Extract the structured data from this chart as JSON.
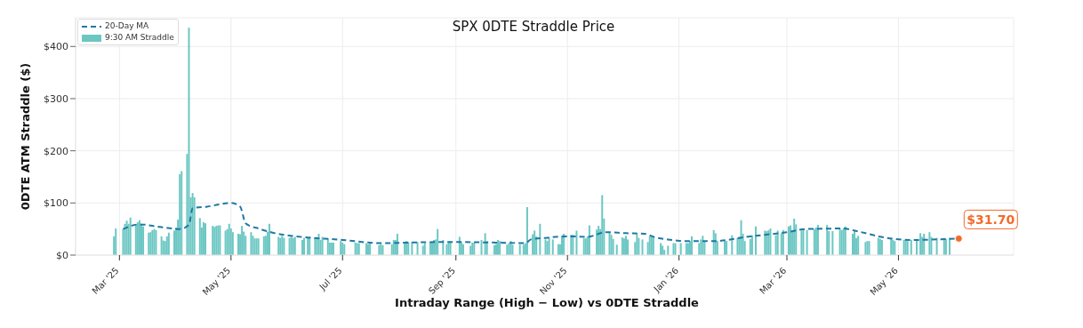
{
  "chart_data": {
    "type": "bar",
    "title": "SPX 0DTE Straddle Price",
    "ylabel": "0DTE ATM Straddle ($)",
    "annotations": [
      {
        "text": "$31.70",
        "x": "2026-06-03",
        "y": 31.7
      },
      "Intraday Range (High − Low) vs 0DTE Straddle"
    ],
    "series": [
      {
        "name": "20-Day MA",
        "type": "line",
        "color": "#1f78a4",
        "line_style": "dashed",
        "x": [
          "2025-03-03",
          "2025-03-12",
          "2025-03-23",
          "2025-04-03",
          "2025-04-08",
          "2025-04-10",
          "2025-04-18",
          "2025-05-01",
          "2025-05-06",
          "2025-05-09",
          "2025-05-17",
          "2025-05-25",
          "2025-06-01",
          "2025-07-01",
          "2025-07-22",
          "2025-08-22",
          "2025-09-02",
          "2025-09-23",
          "2025-10-09",
          "2025-10-12",
          "2025-10-20",
          "2025-11-01",
          "2025-11-12",
          "2025-11-22",
          "2025-12-03",
          "2025-12-13",
          "2025-12-19",
          "2025-12-26",
          "2026-01-05",
          "2026-01-21",
          "2026-02-07",
          "2026-03-01",
          "2026-03-12",
          "2026-04-01",
          "2026-04-07",
          "2026-04-23",
          "2026-05-07",
          "2026-06-03"
        ],
        "values": [
          50,
          59,
          54,
          50,
          58,
          90,
          93,
          100,
          93,
          61,
          50,
          42,
          38,
          29,
          23,
          25,
          25,
          24,
          23,
          30,
          33,
          36,
          35,
          44,
          42,
          41,
          34,
          30,
          27,
          27,
          35,
          44,
          50,
          51,
          47,
          34,
          29,
          32
        ]
      },
      {
        "name": "9:30 AM Straddle",
        "color": "#6cc7c3",
        "x": [
          "2025-02-26",
          "2025-02-27",
          "2025-03-03",
          "2025-03-04",
          "2025-03-05",
          "2025-03-06",
          "2025-03-07",
          "2025-03-10",
          "2025-03-11",
          "2025-03-12",
          "2025-03-13",
          "2025-03-14",
          "2025-03-17",
          "2025-03-18",
          "2025-03-19",
          "2025-03-20",
          "2025-03-21",
          "2025-03-24",
          "2025-03-25",
          "2025-03-26",
          "2025-03-27",
          "2025-03-28",
          "2025-03-31",
          "2025-04-01",
          "2025-04-02",
          "2025-04-03",
          "2025-04-04",
          "2025-04-07",
          "2025-04-08",
          "2025-04-09",
          "2025-04-10",
          "2025-04-11",
          "2025-04-14",
          "2025-04-15",
          "2025-04-16",
          "2025-04-17",
          "2025-04-21",
          "2025-04-22",
          "2025-04-23",
          "2025-04-24",
          "2025-04-25",
          "2025-04-28",
          "2025-04-29",
          "2025-04-30",
          "2025-05-01",
          "2025-05-02",
          "2025-05-05",
          "2025-05-06",
          "2025-05-07",
          "2025-05-08",
          "2025-05-09",
          "2025-05-12",
          "2025-05-13",
          "2025-05-14",
          "2025-05-15",
          "2025-05-16",
          "2025-05-19",
          "2025-05-20",
          "2025-05-21",
          "2025-05-22",
          "2025-05-27",
          "2025-05-28",
          "2025-05-29",
          "2025-05-30",
          "2025-06-02",
          "2025-06-03",
          "2025-06-04",
          "2025-06-05",
          "2025-06-09",
          "2025-06-10",
          "2025-06-12",
          "2025-06-13",
          "2025-06-16",
          "2025-06-17",
          "2025-06-18",
          "2025-06-19",
          "2025-06-20",
          "2025-06-23",
          "2025-06-24",
          "2025-06-25",
          "2025-06-26",
          "2025-06-30",
          "2025-07-01",
          "2025-07-02",
          "2025-07-08",
          "2025-07-09",
          "2025-07-10",
          "2025-07-14",
          "2025-07-15",
          "2025-07-16",
          "2025-07-21",
          "2025-07-22",
          "2025-07-23",
          "2025-07-28",
          "2025-07-29",
          "2025-07-30",
          "2025-07-31",
          "2025-08-04",
          "2025-08-05",
          "2025-08-06",
          "2025-08-08",
          "2025-08-11",
          "2025-08-14",
          "2025-08-15",
          "2025-08-18",
          "2025-08-19",
          "2025-08-20",
          "2025-08-21",
          "2025-08-22",
          "2025-08-25",
          "2025-08-27",
          "2025-08-28",
          "2025-08-29",
          "2025-09-03",
          "2025-09-04",
          "2025-09-05",
          "2025-09-09",
          "2025-09-10",
          "2025-09-11",
          "2025-09-15",
          "2025-09-17",
          "2025-09-18",
          "2025-09-22",
          "2025-09-23",
          "2025-09-24",
          "2025-09-25",
          "2025-09-29",
          "2025-09-30",
          "2025-10-01",
          "2025-10-02",
          "2025-10-06",
          "2025-10-08",
          "2025-10-09",
          "2025-10-10",
          "2025-10-13",
          "2025-10-14",
          "2025-10-15",
          "2025-10-17",
          "2025-10-20",
          "2025-10-21",
          "2025-10-22",
          "2025-10-24",
          "2025-10-27",
          "2025-10-28",
          "2025-10-29",
          "2025-10-30",
          "2025-11-03",
          "2025-11-04",
          "2025-11-06",
          "2025-11-10",
          "2025-11-11",
          "2025-11-12",
          "2025-11-13",
          "2025-11-17",
          "2025-11-18",
          "2025-11-19",
          "2025-11-20",
          "2025-11-21",
          "2025-11-24",
          "2025-11-25",
          "2025-11-26",
          "2025-11-28",
          "2025-12-01",
          "2025-12-02",
          "2025-12-03",
          "2025-12-04",
          "2025-12-08",
          "2025-12-09",
          "2025-12-10",
          "2025-12-12",
          "2025-12-15",
          "2025-12-16",
          "2025-12-17",
          "2025-12-18",
          "2025-12-22",
          "2025-12-23",
          "2025-12-24",
          "2025-12-26",
          "2025-12-29",
          "2025-12-30",
          "2026-01-02",
          "2026-01-05",
          "2026-01-06",
          "2026-01-07",
          "2026-01-08",
          "2026-01-12",
          "2026-01-13",
          "2026-01-14",
          "2026-01-15",
          "2026-01-20",
          "2026-01-21",
          "2026-01-22",
          "2026-01-26",
          "2026-01-27",
          "2026-01-30",
          "2026-02-02",
          "2026-02-03",
          "2026-02-04",
          "2026-02-05",
          "2026-02-06",
          "2026-02-09",
          "2026-02-10",
          "2026-02-12",
          "2026-02-17",
          "2026-02-18",
          "2026-02-19",
          "2026-02-20",
          "2026-02-23",
          "2026-02-24",
          "2026-02-26",
          "2026-02-27",
          "2026-03-02",
          "2026-03-03",
          "2026-03-04",
          "2026-03-05",
          "2026-03-06",
          "2026-03-09",
          "2026-03-10",
          "2026-03-12",
          "2026-03-16",
          "2026-03-17",
          "2026-03-18",
          "2026-03-23",
          "2026-03-24",
          "2026-03-26",
          "2026-03-30",
          "2026-03-31",
          "2026-04-01",
          "2026-04-02",
          "2026-04-06",
          "2026-04-07",
          "2026-04-08",
          "2026-04-09",
          "2026-04-13",
          "2026-04-14",
          "2026-04-15",
          "2026-04-20",
          "2026-04-21",
          "2026-04-22",
          "2026-04-27",
          "2026-04-28",
          "2026-04-29",
          "2026-05-04",
          "2026-05-05",
          "2026-05-06",
          "2026-05-08",
          "2026-05-11",
          "2026-05-13",
          "2026-05-14",
          "2026-05-15",
          "2026-05-18",
          "2026-05-19",
          "2026-05-22",
          "2026-05-26",
          "2026-05-27",
          "2026-05-29"
        ],
        "values": [
          36,
          51,
          50,
          60,
          66,
          60,
          72,
          59,
          63,
          67,
          59,
          55,
          43,
          44,
          48,
          50,
          48,
          36,
          28,
          27,
          36,
          43,
          47,
          53,
          68,
          155,
          161,
          194,
          436,
          111,
          119,
          111,
          71,
          53,
          63,
          61,
          56,
          54,
          56,
          57,
          57,
          47,
          50,
          60,
          51,
          44,
          41,
          40,
          56,
          45,
          37,
          44,
          37,
          32,
          32,
          32,
          36,
          37,
          45,
          60,
          35,
          33,
          37,
          33,
          33,
          35,
          33,
          35,
          29,
          33,
          33,
          35,
          33,
          31,
          41,
          29,
          35,
          31,
          24,
          24,
          24,
          27,
          24,
          21,
          24,
          23,
          23,
          23,
          21,
          24,
          19,
          21,
          19,
          21,
          29,
          29,
          41,
          23,
          27,
          25,
          25,
          25,
          18,
          23,
          24,
          24,
          29,
          30,
          50,
          29,
          21,
          24,
          24,
          35,
          24,
          21,
          18,
          24,
          24,
          29,
          42,
          27,
          19,
          21,
          29,
          27,
          20,
          23,
          27,
          20,
          20,
          20,
          23,
          92,
          40,
          47,
          36,
          60,
          30,
          27,
          33,
          30,
          21,
          21,
          36,
          41,
          39,
          39,
          47,
          32,
          32,
          36,
          57,
          49,
          56,
          50,
          115,
          70,
          44,
          39,
          31,
          20,
          34,
          32,
          37,
          30,
          25,
          40,
          33,
          30,
          25,
          36,
          36,
          34,
          23,
          18,
          10,
          18,
          23,
          23,
          23,
          23,
          23,
          27,
          36,
          23,
          30,
          37,
          27,
          48,
          42,
          27,
          27,
          27,
          38,
          33,
          35,
          67,
          41,
          27,
          31,
          38,
          55,
          47,
          46,
          48,
          51,
          38,
          47,
          42,
          48,
          55,
          57,
          48,
          70,
          59,
          47,
          51,
          48,
          50,
          53,
          58,
          58,
          46,
          46,
          51,
          48,
          51,
          55,
          41,
          47,
          33,
          37,
          25,
          27,
          27,
          33,
          31,
          29,
          31,
          29,
          27,
          29,
          29,
          27,
          29,
          31,
          42,
          35,
          41,
          44,
          35,
          33,
          33,
          31,
          33
        ]
      }
    ],
    "xlim": [
      "2025-02-05",
      "2026-07-03"
    ],
    "xticks": [
      {
        "value": "2025-03-01",
        "label": "Mar '25"
      },
      {
        "value": "2025-05-01",
        "label": "May '25"
      },
      {
        "value": "2025-07-01",
        "label": "Jul '25"
      },
      {
        "value": "2025-09-01",
        "label": "Sep '25"
      },
      {
        "value": "2025-11-01",
        "label": "Nov '25"
      },
      {
        "value": "2026-01-01",
        "label": "Jan '26"
      },
      {
        "value": "2026-03-01",
        "label": "Mar '26"
      },
      {
        "value": "2026-05-01",
        "label": "May '26"
      }
    ],
    "ylim": [
      0,
      455
    ],
    "yticks": [
      {
        "value": 0,
        "label": "$0"
      },
      {
        "value": 100,
        "label": "$100"
      },
      {
        "value": 200,
        "label": "$200"
      },
      {
        "value": 300,
        "label": "$300"
      },
      {
        "value": 400,
        "label": "$400"
      }
    ],
    "grid": true,
    "legend": "top left"
  }
}
